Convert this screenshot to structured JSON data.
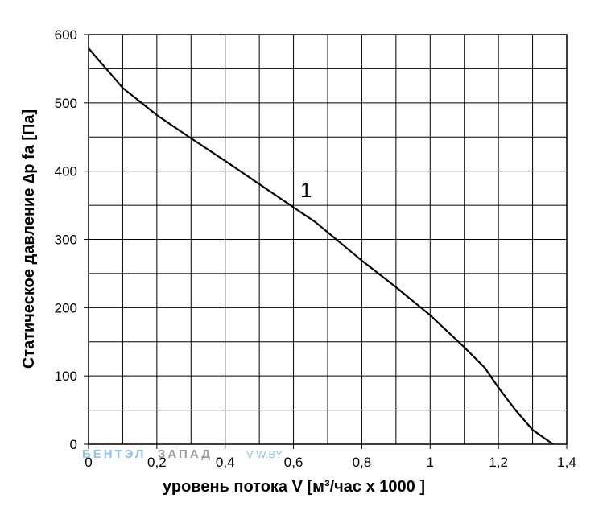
{
  "chart_data": {
    "type": "line",
    "xlabel": "уровень потока  V [м³/час х 1000 ]",
    "ylabel": "Статическое давление  ∆p fa [Па]",
    "xlim": [
      0,
      1.4
    ],
    "ylim": [
      0,
      600
    ],
    "x_ticks": [
      0,
      0.2,
      0.4,
      0.6,
      0.8,
      1.0,
      1.2,
      1.4
    ],
    "x_tick_labels": [
      "0",
      "0,2",
      "0,4",
      "0,6",
      "0,8",
      "1",
      "1,2",
      "1,4"
    ],
    "y_ticks": [
      0,
      100,
      200,
      300,
      400,
      500,
      600
    ],
    "y_tick_labels": [
      "0",
      "100",
      "200",
      "300",
      "400",
      "500",
      "600"
    ],
    "grid": true,
    "grid_x_step": 0.1,
    "grid_y_step": 50,
    "series": [
      {
        "label": "1",
        "x": [
          0,
          0.1,
          0.2,
          0.3,
          0.4,
          0.5,
          0.6,
          0.665,
          0.8,
          0.9,
          1.0,
          1.1,
          1.16,
          1.2,
          1.25,
          1.3,
          1.36
        ],
        "y": [
          580,
          522,
          482,
          448,
          415,
          381,
          347,
          325,
          269,
          230,
          189,
          142,
          112,
          83,
          50,
          21,
          0
        ]
      }
    ]
  },
  "watermark": {
    "part1": "БЕНТЭЛ",
    "part2": "ЗАПАД",
    "part3": "V-W.BY"
  },
  "colors": {
    "line": "#000000",
    "grid": "#000000",
    "watermark_blue": "#8fc3e8",
    "watermark_gray": "#9a9a9a"
  }
}
